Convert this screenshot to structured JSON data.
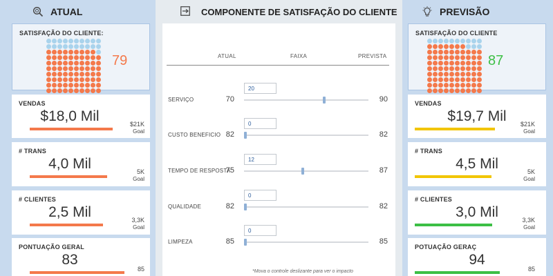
{
  "left": {
    "title": "ATUAL",
    "icon": "magnifier-icon",
    "satisfaction": {
      "label": "SATISFAÇÃO DO CLIENTE:",
      "score": "79",
      "score_color": "#f4794b",
      "filled_fraction": 0.79
    },
    "cards": [
      {
        "label": "VENDAS",
        "value": "$18,0 Mil",
        "goal": "$21K",
        "goal_label": "Goal",
        "bar_color": "#f4794b",
        "progress": 0.86
      },
      {
        "label": "# TRANS",
        "value": "4,0 Mil",
        "goal": "5K",
        "goal_label": "Goal",
        "bar_color": "#f4794b",
        "progress": 0.8
      },
      {
        "label": "# CLIENTES",
        "value": "2,5 Mil",
        "goal": "3,3K",
        "goal_label": "Goal",
        "bar_color": "#f4794b",
        "progress": 0.76
      },
      {
        "label": "PONTUAÇÃO GERAL",
        "value": "83",
        "goal": "85",
        "goal_label": "",
        "bar_color": "#f4794b",
        "progress": 0.98
      }
    ]
  },
  "center": {
    "title": "COMPONENTE DE SATISFAÇÃO DO CLIENTE",
    "icon": "sliders-icon",
    "headers": {
      "current": "ATUAL",
      "range": "FAIXA",
      "predicted": "PREVISTA"
    },
    "rows": [
      {
        "label": "SERVIÇO",
        "current": "70",
        "slider": "20",
        "slider_fraction": 0.65,
        "predicted": "90"
      },
      {
        "label": "CUSTO BENEFICIO",
        "current": "82",
        "slider": "0",
        "slider_fraction": 0.0,
        "predicted": "82"
      },
      {
        "label": "TEMPO DE RESPOSTA",
        "current": "75",
        "slider": "12",
        "slider_fraction": 0.47,
        "predicted": "87"
      },
      {
        "label": "QUALIDADE",
        "current": "82",
        "slider": "0",
        "slider_fraction": 0.0,
        "predicted": "82"
      },
      {
        "label": "LIMPEZA",
        "current": "85",
        "slider": "0",
        "slider_fraction": 0.0,
        "predicted": "85"
      }
    ],
    "footnote": "*Mova o controle deslizante para ver o impacto"
  },
  "right": {
    "title": "PREVISÃO",
    "icon": "lightbulb-icon",
    "satisfaction": {
      "label": "SATISFAÇÃO DO CLIENTE",
      "score": "87",
      "score_color": "#3cbf45",
      "filled_fraction": 0.87
    },
    "cards": [
      {
        "label": "VENDAS",
        "value": "$19,7 Mil",
        "goal": "$21K",
        "goal_label": "Goal",
        "bar_color": "#f2c500",
        "progress": 0.94
      },
      {
        "label": "# TRANS",
        "value": "4,5 Mil",
        "goal": "5K",
        "goal_label": "Goal",
        "bar_color": "#f2c500",
        "progress": 0.9
      },
      {
        "label": "# CLIENTES",
        "value": "3,0 Mil",
        "goal": "3,3K",
        "goal_label": "Goal",
        "bar_color": "#3cbf45",
        "progress": 0.91
      },
      {
        "label": "POTUAÇÃO GERAÇ",
        "value": "94",
        "goal": "85",
        "goal_label": "",
        "bar_color": "#3cbf45",
        "progress": 1.0
      }
    ]
  },
  "colors": {
    "dot_filled": "#f4794b",
    "dot_empty": "#a9d3ec"
  }
}
